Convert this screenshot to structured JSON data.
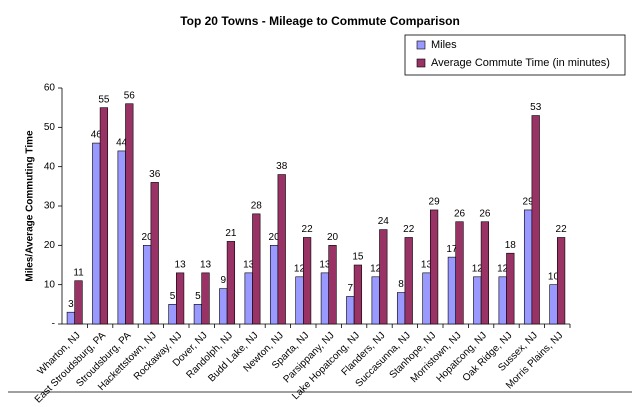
{
  "chart_data": {
    "type": "bar",
    "title": "Top 20 Towns - Mileage to Commute Comparison",
    "y_label": "Miles/Average Commuting Time",
    "categories": [
      "Wharton, NJ",
      "East Stroudsburg, PA",
      "Stroudsburg, PA",
      "Hackettstown, NJ",
      "Rockaway, NJ",
      "Dover, NJ",
      "Randolph, NJ",
      "Budd Lake, NJ",
      "Newton, NJ",
      "Sparta, NJ",
      "Parsippany, NJ",
      "Lake Hopatcong, NJ",
      "Flanders, NJ",
      "Succasunna, NJ",
      "Stanhope, NJ",
      "Morristown, NJ",
      "Hopatcong, NJ",
      "Oak Ridge, NJ",
      "Sussex, NJ",
      "Morris Plains, NJ"
    ],
    "series": [
      {
        "name": "Miles",
        "color": "#9999ff",
        "values": [
          3,
          46,
          44,
          20,
          5,
          5,
          9,
          13,
          20,
          12,
          13,
          7,
          12,
          8,
          13,
          17,
          12,
          12,
          29,
          10
        ]
      },
      {
        "name": "Average Commute Time (in minutes)",
        "color": "#993366",
        "values": [
          11,
          55,
          56,
          36,
          13,
          13,
          21,
          28,
          38,
          22,
          20,
          15,
          24,
          22,
          29,
          26,
          26,
          18,
          53,
          22
        ]
      }
    ],
    "ylim": [
      0,
      60
    ],
    "yticks": [
      {
        "value": 0,
        "label": "-"
      },
      10,
      20,
      30,
      40,
      50,
      60
    ],
    "grid": false,
    "legend": "top-right"
  }
}
